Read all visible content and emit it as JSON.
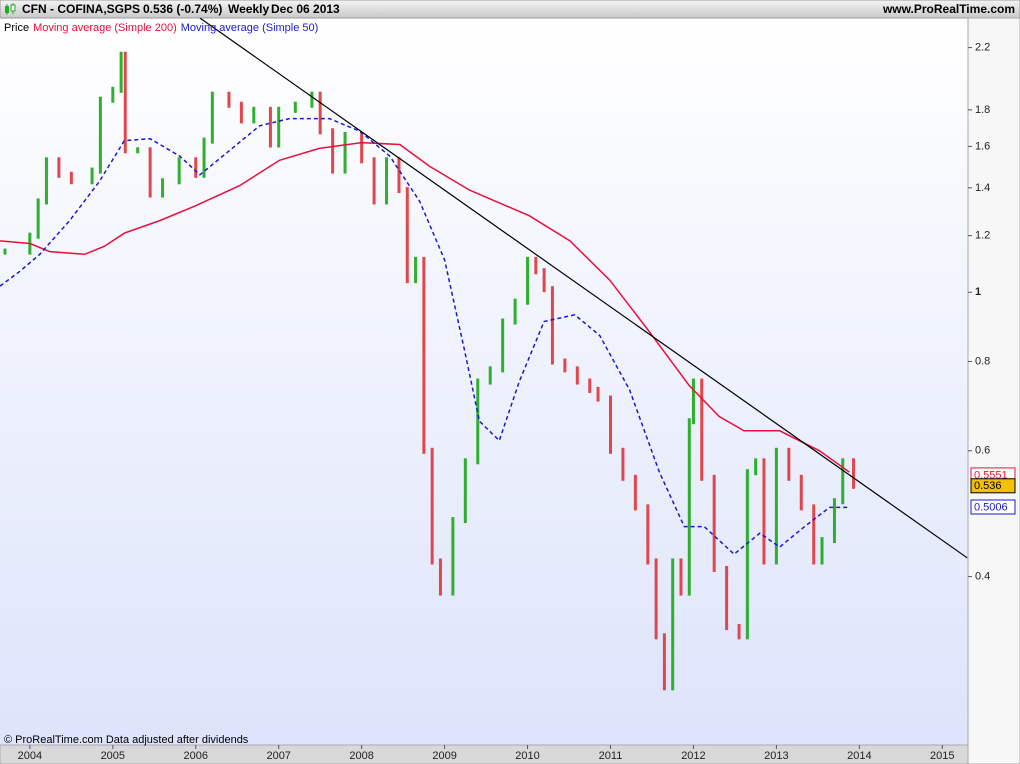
{
  "header": {
    "symbol": "CFN - COFINA,SGPS",
    "quote": "0.536 (-0.74%)",
    "period": "Weekly",
    "date": "Dec 06 2013",
    "site": "www.ProRealTime.com"
  },
  "footer": "© ProRealTime.com  Data adjusted after dividends",
  "chart_data": {
    "type": "stock",
    "log_scale": true,
    "xlim": [
      2003.64,
      2015.31
    ],
    "xticks": [
      2004,
      2005,
      2006,
      2007,
      2008,
      2009,
      2010,
      2011,
      2012,
      2013,
      2014,
      2015
    ],
    "ylim": [
      0.2325,
      2.42
    ],
    "yticks": [
      0.4,
      0.6,
      0.8,
      1,
      1.2,
      1.4,
      1.6,
      1.8,
      2.2
    ],
    "up_color": "#2fae2f",
    "down_color": "#e0474c",
    "series": [
      {
        "name": "Price",
        "color": "#000000",
        "x": [
          2003.7,
          2004.0,
          2004.1,
          2004.2,
          2004.35,
          2004.5,
          2004.75,
          2004.85,
          2005.0,
          2005.1,
          2005.15,
          2005.3,
          2005.45,
          2005.6,
          2005.8,
          2006.0,
          2006.1,
          2006.2,
          2006.4,
          2006.55,
          2006.7,
          2006.9,
          2007.0,
          2007.2,
          2007.4,
          2007.5,
          2007.65,
          2007.8,
          2008.0,
          2008.15,
          2008.3,
          2008.45,
          2008.55,
          2008.65,
          2008.75,
          2008.85,
          2008.95,
          2009.1,
          2009.25,
          2009.4,
          2009.55,
          2009.7,
          2009.85,
          2010.0,
          2010.1,
          2010.2,
          2010.3,
          2010.45,
          2010.6,
          2010.75,
          2010.85,
          2011.0,
          2011.15,
          2011.3,
          2011.45,
          2011.55,
          2011.65,
          2011.75,
          2011.85,
          2011.95,
          2012.0,
          2012.1,
          2012.25,
          2012.4,
          2012.55,
          2012.65,
          2012.75,
          2012.85,
          2013.0,
          2013.15,
          2013.3,
          2013.45,
          2013.55,
          2013.7,
          2013.8,
          2013.93
        ],
        "values": [
          1.14,
          1.2,
          1.34,
          1.53,
          1.46,
          1.43,
          1.48,
          1.86,
          1.92,
          2.15,
          1.58,
          1.58,
          1.37,
          1.43,
          1.53,
          1.46,
          1.63,
          1.89,
          1.83,
          1.74,
          1.8,
          1.61,
          1.8,
          1.83,
          1.89,
          1.68,
          1.48,
          1.66,
          1.53,
          1.34,
          1.53,
          1.39,
          1.04,
          1.11,
          0.6,
          0.42,
          0.38,
          0.48,
          0.58,
          0.75,
          0.78,
          0.91,
          0.97,
          1.11,
          1.07,
          1.01,
          0.8,
          0.78,
          0.75,
          0.73,
          0.71,
          0.6,
          0.55,
          0.5,
          0.42,
          0.33,
          0.28,
          0.42,
          0.38,
          0.66,
          0.75,
          0.55,
          0.41,
          0.34,
          0.33,
          0.56,
          0.58,
          0.42,
          0.6,
          0.55,
          0.5,
          0.42,
          0.45,
          0.51,
          0.58,
          0.536
        ]
      },
      {
        "name": "Moving average (Simple 200)",
        "color": "#e8103a",
        "style": "solid",
        "x": [
          2003.64,
          2004.0,
          2004.24,
          2004.66,
          2004.9,
          2005.14,
          2005.57,
          2005.99,
          2006.53,
          2007.01,
          2007.49,
          2008.0,
          2008.46,
          2008.82,
          2009.3,
          2010.02,
          2010.51,
          2010.99,
          2011.47,
          2011.95,
          2012.31,
          2012.61,
          2013.04,
          2013.52,
          2013.88
        ],
        "values": [
          1.18,
          1.17,
          1.14,
          1.13,
          1.16,
          1.21,
          1.26,
          1.32,
          1.41,
          1.53,
          1.59,
          1.62,
          1.61,
          1.5,
          1.39,
          1.28,
          1.18,
          1.04,
          0.88,
          0.74,
          0.67,
          0.64,
          0.64,
          0.6,
          0.56
        ]
      },
      {
        "name": "Moving average (Simple 50)",
        "color": "#1a1acc",
        "style": "dashed",
        "x": [
          2003.64,
          2003.88,
          2004.12,
          2004.48,
          2004.84,
          2005.14,
          2005.45,
          2005.81,
          2006.05,
          2006.41,
          2006.77,
          2007.13,
          2007.61,
          2007.98,
          2008.34,
          2008.7,
          2009.0,
          2009.24,
          2009.42,
          2009.66,
          2009.9,
          2010.2,
          2010.57,
          2010.87,
          2011.23,
          2011.59,
          2011.89,
          2012.13,
          2012.49,
          2012.8,
          2013.04,
          2013.34,
          2013.64,
          2013.88
        ],
        "values": [
          1.02,
          1.07,
          1.13,
          1.26,
          1.43,
          1.63,
          1.64,
          1.55,
          1.46,
          1.58,
          1.71,
          1.75,
          1.75,
          1.68,
          1.55,
          1.34,
          1.11,
          0.83,
          0.66,
          0.62,
          0.75,
          0.91,
          0.93,
          0.87,
          0.73,
          0.56,
          0.47,
          0.47,
          0.43,
          0.46,
          0.44,
          0.47,
          0.5,
          0.5
        ]
      }
    ],
    "trendline": {
      "color": "#000000",
      "x": [
        2006.05,
        2015.3
      ],
      "values": [
        2.42,
        0.425
      ]
    },
    "last_values": [
      {
        "value": 0.5551,
        "color": "#e8103a",
        "fill": "#ffffff"
      },
      {
        "value": 0.536,
        "color": "#000000",
        "fill": "#f2c200"
      },
      {
        "value": 0.5006,
        "color": "#1a1acc",
        "fill": "#ffffff"
      }
    ]
  }
}
